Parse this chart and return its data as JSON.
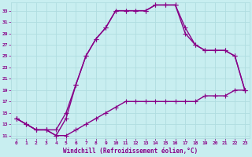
{
  "xlabel": "Windchill (Refroidissement éolien,°C)",
  "xlim": [
    -0.5,
    23.5
  ],
  "ylim": [
    10.5,
    34.5
  ],
  "yticks": [
    11,
    13,
    15,
    17,
    19,
    21,
    23,
    25,
    27,
    29,
    31,
    33
  ],
  "xticks": [
    0,
    1,
    2,
    3,
    4,
    5,
    6,
    7,
    8,
    9,
    10,
    11,
    12,
    13,
    14,
    15,
    16,
    17,
    18,
    19,
    20,
    21,
    22,
    23
  ],
  "background_color": "#c8eef0",
  "grid_color": "#b0dde0",
  "line_color": "#880088",
  "line_width": 1.0,
  "marker": "+",
  "marker_size": 4,
  "curve1_x": [
    0,
    1,
    2,
    3,
    4,
    5,
    6,
    7,
    8,
    9,
    10,
    11,
    12,
    13,
    14,
    15,
    16,
    17,
    18,
    19,
    20,
    21,
    22,
    23
  ],
  "curve1_y": [
    14,
    13,
    12,
    12,
    11,
    11,
    12,
    13,
    14,
    15,
    16,
    17,
    17,
    17,
    17,
    17,
    17,
    17,
    17,
    18,
    18,
    18,
    19,
    19
  ],
  "curve2_x": [
    0,
    1,
    2,
    3,
    4,
    5,
    6,
    7,
    8,
    9,
    10,
    11,
    12,
    13,
    14,
    15,
    16,
    17,
    18,
    19,
    20,
    21,
    22,
    23
  ],
  "curve2_y": [
    14,
    13,
    12,
    12,
    11,
    14,
    20,
    25,
    28,
    30,
    33,
    33,
    33,
    33,
    34,
    34,
    34,
    30,
    27,
    26,
    26,
    26,
    25,
    19
  ],
  "curve3_x": [
    0,
    1,
    2,
    3,
    4,
    5,
    6,
    7,
    8,
    9,
    10,
    11,
    12,
    13,
    14,
    15,
    16,
    17,
    18,
    19,
    20,
    21,
    22,
    23
  ],
  "curve3_y": [
    14,
    13,
    12,
    12,
    12,
    15,
    20,
    25,
    28,
    30,
    33,
    33,
    33,
    33,
    34,
    34,
    34,
    29,
    27,
    26,
    26,
    26,
    25,
    19
  ]
}
